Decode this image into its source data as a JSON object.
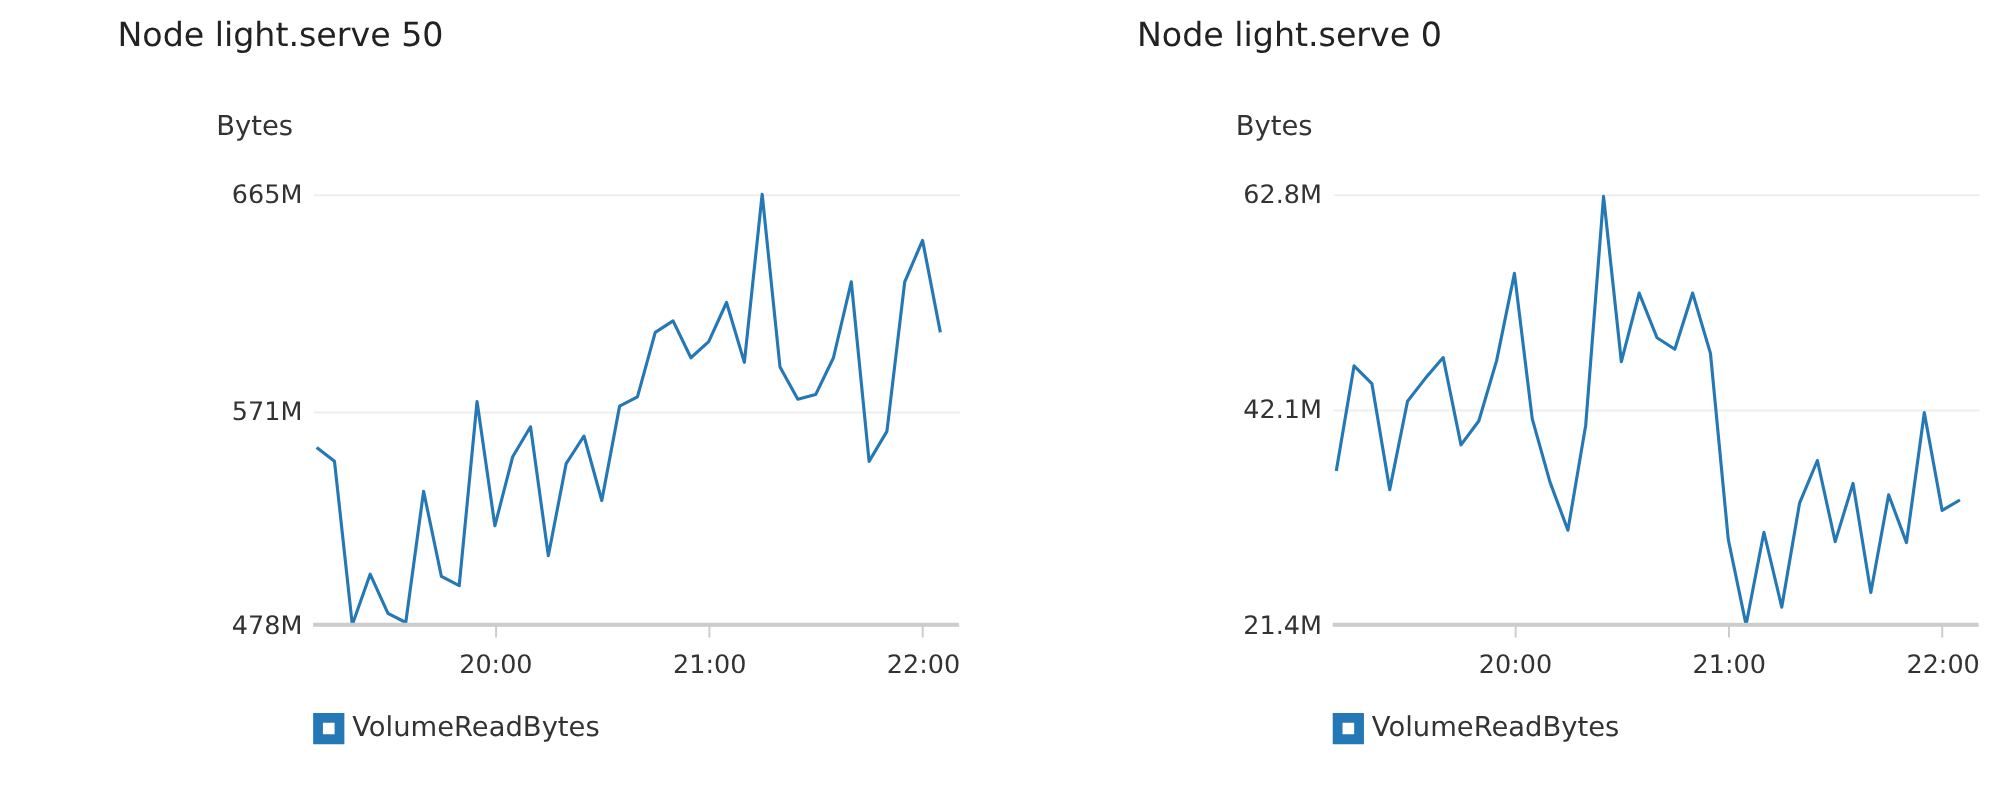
{
  "chart_data": [
    {
      "type": "line",
      "title": "Node light.serve 50",
      "ylabel": "Bytes",
      "x": [
        19.1667,
        19.25,
        19.3333,
        19.4167,
        19.5,
        19.5833,
        19.6667,
        19.75,
        19.8333,
        19.9167,
        20,
        20.0833,
        20.1667,
        20.25,
        20.3333,
        20.4167,
        20.5,
        20.5833,
        20.6667,
        20.75,
        20.8333,
        20.9167,
        21,
        21.0833,
        21.1667,
        21.25,
        21.3333,
        21.4167,
        21.5,
        21.5833,
        21.6667,
        21.75,
        21.8333,
        21.9167,
        22,
        22.0833
      ],
      "series": [
        {
          "name": "VolumeReadBytes",
          "color": "#2478b5",
          "values": [
            555,
            549,
            478,
            500,
            483,
            479,
            536,
            499,
            495,
            575,
            521,
            551,
            564,
            508,
            548,
            560,
            532,
            573,
            577,
            605,
            610,
            594,
            601,
            618,
            592,
            665,
            590,
            576,
            578,
            594,
            627,
            549,
            562,
            627,
            645,
            605
          ]
        }
      ],
      "xlim": [
        19.15,
        22.17
      ],
      "xticks": [
        {
          "value": 20,
          "label": "20:00"
        },
        {
          "value": 21,
          "label": "21:00"
        },
        {
          "value": 22,
          "label": "22:00"
        }
      ],
      "ylim": [
        478,
        665
      ],
      "yticks": [
        {
          "value": 478,
          "label": "478M"
        },
        {
          "value": 571,
          "label": "571M"
        },
        {
          "value": 665,
          "label": "665M"
        }
      ],
      "grid": "y",
      "legend": "bottom"
    },
    {
      "type": "line",
      "title": "Node light.serve 0",
      "ylabel": "Bytes",
      "x": [
        19.1667,
        19.25,
        19.3333,
        19.4167,
        19.5,
        19.5833,
        19.6667,
        19.75,
        19.8333,
        19.9167,
        20,
        20.0833,
        20.1667,
        20.25,
        20.3333,
        20.4167,
        20.5,
        20.5833,
        20.6667,
        20.75,
        20.8333,
        20.9167,
        21,
        21.0833,
        21.1667,
        21.25,
        21.3333,
        21.4167,
        21.5,
        21.5833,
        21.6667,
        21.75,
        21.8333,
        21.9167,
        22,
        22.0833
      ],
      "series": [
        {
          "name": "VolumeReadBytes",
          "color": "#2478b5",
          "values": [
            36.2,
            46.3,
            44.6,
            34.4,
            42.9,
            45.1,
            47.1,
            38.7,
            41.0,
            46.8,
            55.2,
            41.2,
            35.1,
            30.5,
            40.6,
            62.6,
            46.7,
            53.3,
            49.0,
            47.9,
            53.3,
            47.5,
            29.6,
            21.4,
            30.3,
            23.1,
            33.1,
            37.2,
            29.4,
            35.0,
            24.5,
            33.9,
            29.3,
            41.8,
            32.4,
            33.4
          ]
        }
      ],
      "xlim": [
        19.15,
        22.17
      ],
      "xticks": [
        {
          "value": 20,
          "label": "20:00"
        },
        {
          "value": 21,
          "label": "21:00"
        },
        {
          "value": 22,
          "label": "22:00"
        }
      ],
      "ylim": [
        21.4,
        62.8
      ],
      "yticks": [
        {
          "value": 21.4,
          "label": "21.4M"
        },
        {
          "value": 42.1,
          "label": "42.1M"
        },
        {
          "value": 62.8,
          "label": "62.8M"
        }
      ],
      "grid": "y",
      "legend": "bottom"
    }
  ]
}
